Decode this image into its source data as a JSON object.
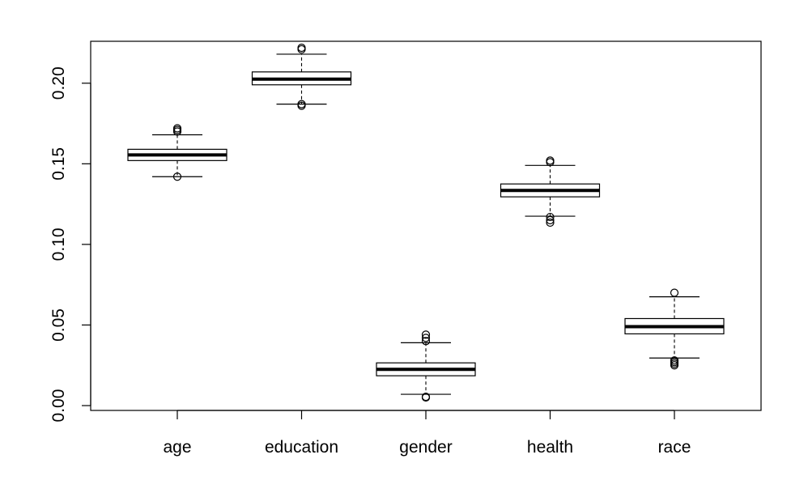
{
  "chart_data": {
    "type": "box",
    "title": "",
    "xlabel": "",
    "ylabel": "",
    "ylim": [
      -0.003,
      0.226
    ],
    "yticks": [
      0.0,
      0.05,
      0.1,
      0.15,
      0.2
    ],
    "ytick_labels": [
      "0.00",
      "0.05",
      "0.10",
      "0.15",
      "0.20"
    ],
    "grid": false,
    "legend": "none",
    "categories": [
      "age",
      "education",
      "gender",
      "health",
      "race"
    ],
    "boxes": [
      {
        "label": "age",
        "whisker_low": 0.142,
        "q1": 0.152,
        "median": 0.1555,
        "q3": 0.159,
        "whisker_high": 0.168,
        "outliers": [
          0.142,
          0.17,
          0.171,
          0.172
        ]
      },
      {
        "label": "education",
        "whisker_low": 0.187,
        "q1": 0.199,
        "median": 0.2025,
        "q3": 0.207,
        "whisker_high": 0.218,
        "outliers": [
          0.186,
          0.187,
          0.221,
          0.222
        ]
      },
      {
        "label": "gender",
        "whisker_low": 0.007,
        "q1": 0.0185,
        "median": 0.0225,
        "q3": 0.0265,
        "whisker_high": 0.039,
        "outliers": [
          0.005,
          0.0055,
          0.04,
          0.042,
          0.044
        ]
      },
      {
        "label": "health",
        "whisker_low": 0.1175,
        "q1": 0.1295,
        "median": 0.1335,
        "q3": 0.1375,
        "whisker_high": 0.149,
        "outliers": [
          0.1135,
          0.115,
          0.117,
          0.151,
          0.152
        ]
      },
      {
        "label": "race",
        "whisker_low": 0.0295,
        "q1": 0.0445,
        "median": 0.049,
        "q3": 0.054,
        "whisker_high": 0.0675,
        "outliers": [
          0.025,
          0.026,
          0.027,
          0.028,
          0.07
        ]
      }
    ]
  }
}
